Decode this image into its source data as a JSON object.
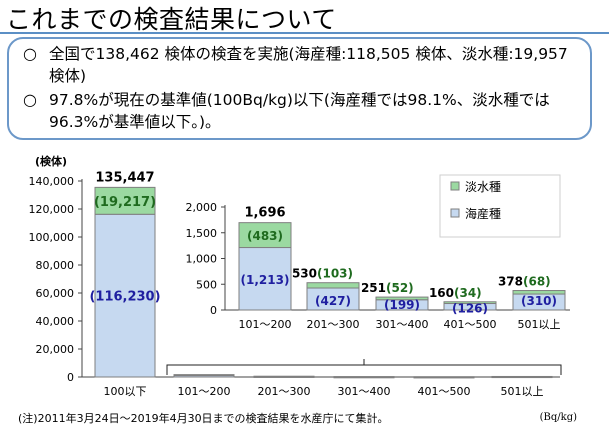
{
  "title": "これまでの検査結果について",
  "summary": {
    "bullet": "○",
    "line1": "全国で138,462 検体の検査を実施(海産種:118,505 検体、淡水種:19,957 検体)",
    "line2": "97.8%が現在の基準値(100Bq/kg)以下(海産種では98.1%、淡水種では96.3%が基準値以下。)。"
  },
  "colors": {
    "freshwater": "#9bd9a1",
    "marine": "#c6d9f0",
    "bar_border": "#7f7f7f",
    "paren_marine": "#1f1fa0",
    "paren_fresh": "#1f6b1f"
  },
  "chart_data": [
    {
      "type": "bar",
      "stacked": true,
      "ylabel": "(検体)",
      "ylim": [
        0,
        140000
      ],
      "yticks": [
        "0",
        "20,000",
        "40,000",
        "60,000",
        "80,000",
        "100,000",
        "120,000",
        "140,000"
      ],
      "categories": [
        "100以下",
        "101〜200",
        "201〜300",
        "301〜400",
        "401〜500",
        "501以上"
      ],
      "series": [
        {
          "name": "海産種",
          "values": [
            116230,
            1213,
            427,
            199,
            126,
            310
          ]
        },
        {
          "name": "淡水種",
          "values": [
            19217,
            483,
            103,
            52,
            34,
            68
          ]
        }
      ],
      "totals": [
        "135,447",
        "",
        "",
        "",
        "",
        ""
      ],
      "labels_marine": [
        "(116,230)",
        "",
        "",
        "",
        "",
        ""
      ],
      "labels_fresh": [
        "(19,217)",
        "",
        "",
        "",
        "",
        ""
      ],
      "xunit": "(Bq/kg)"
    },
    {
      "type": "bar",
      "stacked": true,
      "ylim": [
        0,
        2000
      ],
      "yticks": [
        "0",
        "500",
        "1,000",
        "1,500",
        "2,000"
      ],
      "categories": [
        "101〜200",
        "201〜300",
        "301〜400",
        "401〜500",
        "501以上"
      ],
      "series": [
        {
          "name": "海産種",
          "values": [
            1213,
            427,
            199,
            126,
            310
          ]
        },
        {
          "name": "淡水種",
          "values": [
            483,
            103,
            52,
            34,
            68
          ]
        }
      ],
      "totals": [
        "1,696",
        "530",
        "251",
        "160",
        "378"
      ],
      "labels_marine": [
        "(1,213)",
        "(427)",
        "(199)",
        "(126)",
        "(310)"
      ],
      "labels_fresh": [
        "(483)",
        "(103)",
        "(52)",
        "(34)",
        "(68)"
      ],
      "legend": [
        "淡水種",
        "海産種"
      ],
      "legend_position": "top-right"
    }
  ],
  "footnote": "(注)2011年3月24日〜2019年4月30日までの検査結果を水産庁にて集計。"
}
